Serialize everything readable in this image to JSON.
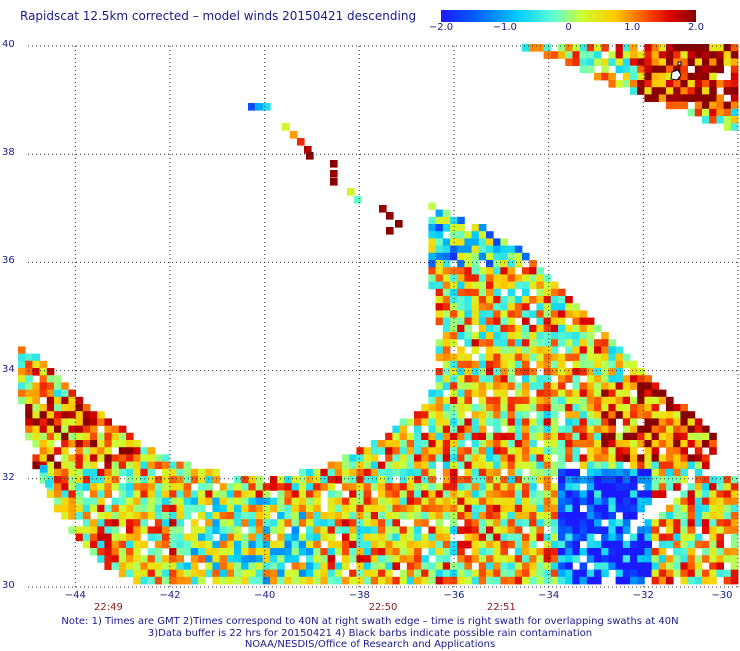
{
  "title": "Rapidscat 12.5km corrected – model winds 20150421 descending",
  "colorbar": {
    "min": -2.0,
    "max": 2.0,
    "ticks": [
      "−2.0",
      "−1.0",
      "0",
      "1.0",
      "2.0"
    ],
    "tick_values": [
      -2.0,
      -1.0,
      0,
      1.0,
      2.0
    ],
    "colors": [
      "#1a1aff",
      "#00aaff",
      "#00ffff",
      "#aaff66",
      "#ffff00",
      "#ff9900",
      "#ff2200",
      "#880000"
    ]
  },
  "map": {
    "lon_range": [
      -45,
      -30
    ],
    "lat_range": [
      30,
      40
    ],
    "lon_ticks": [
      "−44",
      "−42",
      "−40",
      "−38",
      "−36",
      "−34",
      "−32",
      "−30"
    ],
    "lon_tick_values": [
      -44,
      -42,
      -40,
      -38,
      -36,
      -34,
      -32,
      -30
    ],
    "lat_ticks": [
      "40",
      "38",
      "36",
      "34",
      "32",
      "30"
    ],
    "lat_tick_values": [
      40,
      38,
      36,
      34,
      32,
      30
    ],
    "grid": "dotted",
    "time_labels": [
      {
        "text": "22:49",
        "lon": -43.3
      },
      {
        "text": "22:50",
        "lon": -37.5
      },
      {
        "text": "22:51",
        "lon": -35.0
      }
    ]
  },
  "notes": {
    "line1": "Note: 1) Times are GMT 2)Times correspond to 40N at right swath edge – time is right swath for overlapping swaths at 40N",
    "line2": "3)Data buffer is 22 hrs for 20150421 4) Black barbs indicate possible rain contamination",
    "line3": "NOAA/NESDIS/Office of Research and Applications"
  }
}
